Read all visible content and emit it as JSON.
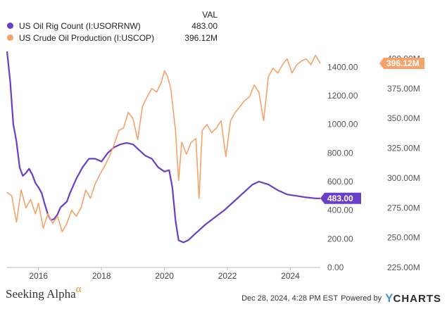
{
  "legend": {
    "header": "VAL",
    "items": [
      {
        "name": "US Oil Rig Count (I:USORRNW)",
        "value": "483.00",
        "color": "#6a3fc8"
      },
      {
        "name": "US Crude Oil Production (I:USCOP)",
        "value": "396.12M",
        "color": "#f5a36b"
      }
    ]
  },
  "footer": {
    "brand": "Seeking Alpha",
    "brand_symbol": "α",
    "timestamp": "Dec 28, 2024, 4:28 PM EST",
    "powered_by": "Powered by",
    "ycharts_y": "Y",
    "ycharts_rest": "CHARTS"
  },
  "chart_data": {
    "type": "line",
    "x_ticks": [
      "2016",
      "2018",
      "2020",
      "2022",
      "2024"
    ],
    "y_left_ticks": [
      "0.00",
      "200.00",
      "400.00",
      "600.00",
      "800.00",
      "1000.00",
      "1200.00",
      "1400.00"
    ],
    "y_left_range": [
      0,
      1500
    ],
    "y_right_ticks": [
      "225.00M",
      "250.00M",
      "275.00M",
      "300.00M",
      "325.00M",
      "350.00M",
      "375.00M",
      "400.00M"
    ],
    "y_right_range": [
      225,
      405
    ],
    "grid": false,
    "legend_position": "top-left",
    "end_labels": {
      "left": "483.00",
      "right": "396.12M"
    },
    "series": [
      {
        "name": "US Oil Rig Count (I:USORRNW)",
        "axis": "left",
        "color": "#6a3fc8",
        "points": [
          [
            2015.0,
            1510
          ],
          [
            2015.1,
            1300
          ],
          [
            2015.2,
            1000
          ],
          [
            2015.3,
            880
          ],
          [
            2015.4,
            700
          ],
          [
            2015.5,
            640
          ],
          [
            2015.6,
            660
          ],
          [
            2015.7,
            690
          ],
          [
            2015.8,
            650
          ],
          [
            2015.9,
            590
          ],
          [
            2016.0,
            560
          ],
          [
            2016.1,
            520
          ],
          [
            2016.2,
            440
          ],
          [
            2016.3,
            370
          ],
          [
            2016.4,
            330
          ],
          [
            2016.5,
            340
          ],
          [
            2016.6,
            370
          ],
          [
            2016.7,
            420
          ],
          [
            2016.8,
            440
          ],
          [
            2016.9,
            460
          ],
          [
            2017.0,
            520
          ],
          [
            2017.2,
            620
          ],
          [
            2017.4,
            700
          ],
          [
            2017.6,
            760
          ],
          [
            2017.8,
            760
          ],
          [
            2018.0,
            740
          ],
          [
            2018.2,
            800
          ],
          [
            2018.4,
            840
          ],
          [
            2018.6,
            860
          ],
          [
            2018.8,
            870
          ],
          [
            2019.0,
            860
          ],
          [
            2019.2,
            820
          ],
          [
            2019.4,
            780
          ],
          [
            2019.6,
            760
          ],
          [
            2019.8,
            700
          ],
          [
            2020.0,
            670
          ],
          [
            2020.15,
            680
          ],
          [
            2020.25,
            560
          ],
          [
            2020.35,
            330
          ],
          [
            2020.45,
            190
          ],
          [
            2020.6,
            175
          ],
          [
            2020.75,
            190
          ],
          [
            2021.0,
            240
          ],
          [
            2021.3,
            300
          ],
          [
            2021.6,
            350
          ],
          [
            2021.9,
            400
          ],
          [
            2022.2,
            460
          ],
          [
            2022.5,
            520
          ],
          [
            2022.8,
            580
          ],
          [
            2023.0,
            600
          ],
          [
            2023.3,
            580
          ],
          [
            2023.6,
            540
          ],
          [
            2023.9,
            510
          ],
          [
            2024.2,
            500
          ],
          [
            2024.5,
            490
          ],
          [
            2024.8,
            483
          ],
          [
            2024.95,
            483
          ]
        ]
      },
      {
        "name": "US Crude Oil Production (I:USCOP)",
        "axis": "right",
        "color": "#f5a36b",
        "points": [
          [
            2015.0,
            288
          ],
          [
            2015.15,
            285
          ],
          [
            2015.3,
            263
          ],
          [
            2015.45,
            290
          ],
          [
            2015.6,
            275
          ],
          [
            2015.75,
            282
          ],
          [
            2015.9,
            270
          ],
          [
            2016.0,
            279
          ],
          [
            2016.15,
            258
          ],
          [
            2016.3,
            270
          ],
          [
            2016.45,
            262
          ],
          [
            2016.6,
            268
          ],
          [
            2016.75,
            255
          ],
          [
            2016.9,
            262
          ],
          [
            2017.05,
            273
          ],
          [
            2017.2,
            268
          ],
          [
            2017.35,
            275
          ],
          [
            2017.5,
            290
          ],
          [
            2017.65,
            283
          ],
          [
            2017.8,
            295
          ],
          [
            2017.95,
            303
          ],
          [
            2018.1,
            310
          ],
          [
            2018.25,
            318
          ],
          [
            2018.4,
            328
          ],
          [
            2018.55,
            340
          ],
          [
            2018.7,
            342
          ],
          [
            2018.85,
            355
          ],
          [
            2019.0,
            350
          ],
          [
            2019.15,
            332
          ],
          [
            2019.3,
            360
          ],
          [
            2019.45,
            368
          ],
          [
            2019.6,
            375
          ],
          [
            2019.75,
            372
          ],
          [
            2019.9,
            380
          ],
          [
            2020.0,
            390
          ],
          [
            2020.1,
            385
          ],
          [
            2020.2,
            375
          ],
          [
            2020.35,
            340
          ],
          [
            2020.45,
            298
          ],
          [
            2020.55,
            330
          ],
          [
            2020.7,
            320
          ],
          [
            2020.85,
            330
          ],
          [
            2021.0,
            333
          ],
          [
            2021.1,
            283
          ],
          [
            2021.2,
            340
          ],
          [
            2021.35,
            345
          ],
          [
            2021.5,
            338
          ],
          [
            2021.65,
            342
          ],
          [
            2021.8,
            348
          ],
          [
            2021.95,
            318
          ],
          [
            2022.1,
            348
          ],
          [
            2022.25,
            355
          ],
          [
            2022.4,
            360
          ],
          [
            2022.55,
            365
          ],
          [
            2022.7,
            368
          ],
          [
            2022.85,
            378
          ],
          [
            2023.0,
            372
          ],
          [
            2023.15,
            348
          ],
          [
            2023.3,
            385
          ],
          [
            2023.45,
            392
          ],
          [
            2023.6,
            388
          ],
          [
            2023.75,
            395
          ],
          [
            2023.9,
            400
          ],
          [
            2024.05,
            388
          ],
          [
            2024.2,
            395
          ],
          [
            2024.35,
            398
          ],
          [
            2024.5,
            400
          ],
          [
            2024.65,
            395
          ],
          [
            2024.8,
            403
          ],
          [
            2024.95,
            396.12
          ]
        ]
      }
    ]
  }
}
